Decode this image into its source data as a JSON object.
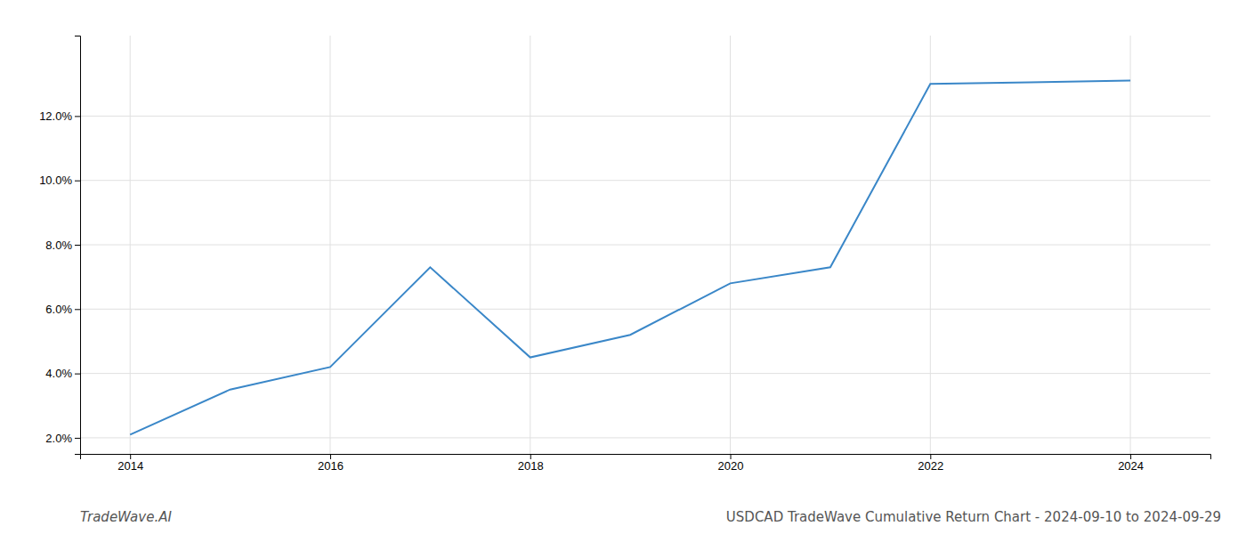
{
  "chart_data": {
    "type": "line",
    "title": "USDCAD TradeWave Cumulative Return Chart - 2024-09-10 to 2024-09-29",
    "annotations": [
      "TradeWave.AI"
    ],
    "x": [
      2014,
      2015,
      2016,
      2017,
      2018,
      2019,
      2020,
      2021,
      2022,
      2023,
      2024
    ],
    "values": [
      2.1,
      3.5,
      4.2,
      7.3,
      4.5,
      5.2,
      6.8,
      7.3,
      13.0,
      13.05,
      13.1
    ],
    "color": "#3a87c8",
    "xlim": [
      2013.5,
      2024.8
    ],
    "ylim": [
      1.5,
      14.5
    ],
    "xticks": [
      2014,
      2016,
      2018,
      2020,
      2022,
      2024
    ],
    "yticks": [
      {
        "value": 2.0,
        "label": "2.0%"
      },
      {
        "value": 4.0,
        "label": "4.0%"
      },
      {
        "value": 6.0,
        "label": "6.0%"
      },
      {
        "value": 8.0,
        "label": "8.0%"
      },
      {
        "value": 10.0,
        "label": "10.0%"
      },
      {
        "value": 12.0,
        "label": "12.0%"
      }
    ],
    "grid": true
  }
}
